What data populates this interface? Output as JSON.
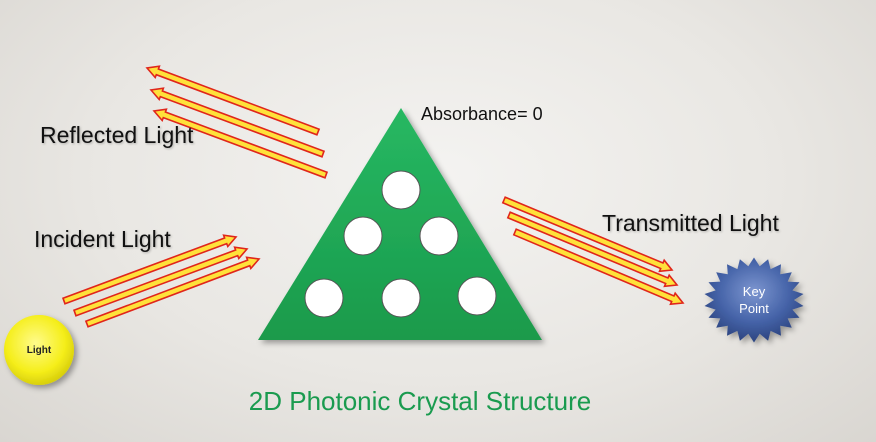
{
  "labels": {
    "reflected": "Reflected Light",
    "incident": "Incident Light",
    "transmitted": "Transmitted Light",
    "absorbance": "Absorbance= 0"
  },
  "light_source": {
    "text": "Light",
    "color": "#f5ee1a"
  },
  "key_point": {
    "line1": "Key",
    "line2": "Point",
    "color": "#3d5a9e"
  },
  "caption": "2D Photonic Crystal Structure",
  "colors": {
    "crystal": "#1faa55",
    "holes": "#ffffff",
    "arrow_fill": "#ffe13a",
    "arrow_outline": "#e0261b",
    "caption": "#1a9b4f"
  }
}
